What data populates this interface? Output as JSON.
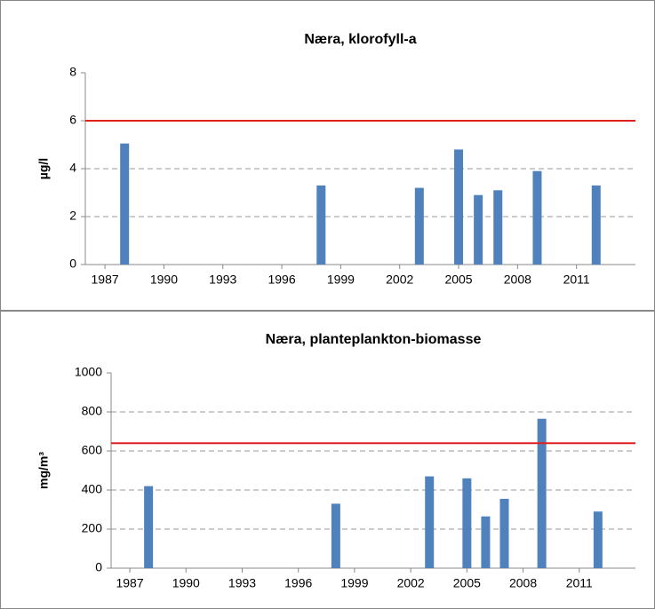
{
  "chart_data": [
    {
      "type": "bar",
      "title": "Næra, klorofyll-a",
      "y_label": "µg/l",
      "x": [
        1988,
        1998,
        2003,
        2005,
        2006,
        2007,
        2009,
        2012
      ],
      "values": [
        5.05,
        3.3,
        3.2,
        4.8,
        2.9,
        3.1,
        3.9,
        3.3
      ],
      "color": "#4f81bd",
      "threshold": 6,
      "threshold_color": "#e02020",
      "xlim": [
        1986,
        2014
      ],
      "xticks": [
        1987,
        1990,
        1993,
        1996,
        1999,
        2002,
        2005,
        2008,
        2011
      ],
      "ylim": [
        0,
        8
      ],
      "yticks": [
        0,
        2,
        4,
        6,
        8
      ],
      "grid": true
    },
    {
      "type": "bar",
      "title": "Næra, planteplankton-biomasse",
      "y_label": "mg/m³",
      "x": [
        1988,
        1998,
        2003,
        2005,
        2006,
        2007,
        2009,
        2012
      ],
      "values": [
        420,
        330,
        470,
        460,
        265,
        355,
        765,
        290
      ],
      "color": "#4f81bd",
      "threshold": 640,
      "threshold_color": "#e02020",
      "xlim": [
        1986,
        2014
      ],
      "xticks": [
        1987,
        1990,
        1993,
        1996,
        1999,
        2002,
        2005,
        2008,
        2011
      ],
      "ylim": [
        0,
        1000
      ],
      "yticks": [
        0,
        200,
        400,
        600,
        800,
        1000
      ],
      "grid": true
    }
  ]
}
